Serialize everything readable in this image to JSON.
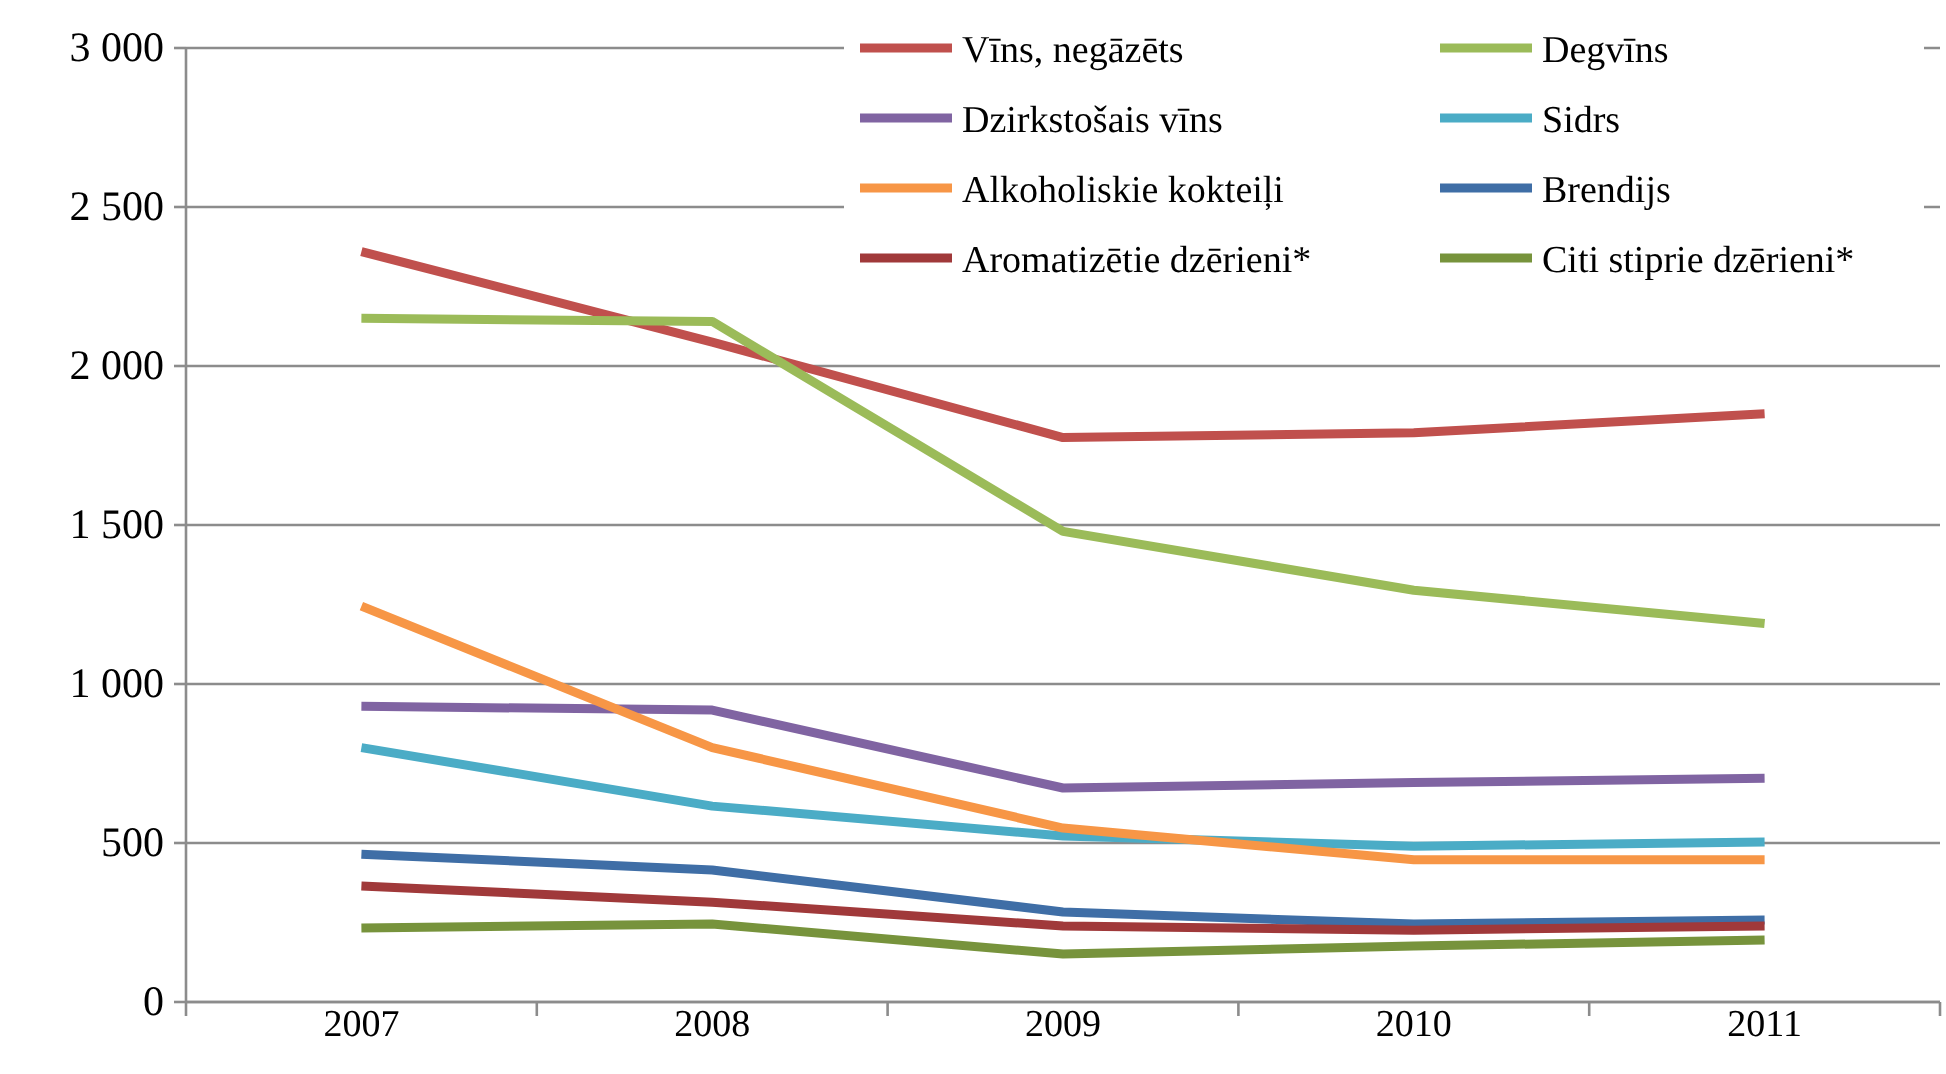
{
  "chart_data": {
    "type": "line",
    "categories": [
      "2007",
      "2008",
      "2009",
      "2010",
      "2011"
    ],
    "ylim": [
      0,
      3000
    ],
    "yticks": [
      {
        "value": 0,
        "label": "0"
      },
      {
        "value": 500,
        "label": "500"
      },
      {
        "value": 1000,
        "label": "1 000"
      },
      {
        "value": 1500,
        "label": "1 500"
      },
      {
        "value": 2000,
        "label": "2 000"
      },
      {
        "value": 2500,
        "label": "2 500"
      },
      {
        "value": 3000,
        "label": "3 000"
      }
    ],
    "grid": "y",
    "legend": "top right",
    "marker": "none",
    "line_style": "solid",
    "series": [
      {
        "name": "Vīns, negāzēts",
        "color": "#c0504d",
        "values": [
          2360,
          2075,
          1775,
          1790,
          1850
        ]
      },
      {
        "name": "Degvīns",
        "color": "#9bbb59",
        "values": [
          2150,
          2140,
          1480,
          1295,
          1190
        ]
      },
      {
        "name": "Dzirkstošais vīns",
        "color": "#8064a2",
        "values": [
          930,
          918,
          673,
          690,
          704
        ]
      },
      {
        "name": "Sidrs",
        "color": "#4bacc6",
        "values": [
          800,
          616,
          522,
          490,
          503
        ]
      },
      {
        "name": "Alkoholiskie kokteiļi",
        "color": "#f79646",
        "values": [
          1245,
          800,
          547,
          447,
          447
        ]
      },
      {
        "name": "Brendijs",
        "color": "#3f6ea6",
        "values": [
          465,
          415,
          283,
          245,
          258
        ]
      },
      {
        "name": "Aromatizētie dzērieni*",
        "color": "#a0393a",
        "values": [
          365,
          314,
          239,
          226,
          239
        ]
      },
      {
        "name": "Citi stiprie dzērieni*",
        "color": "#77933c",
        "values": [
          233,
          245,
          151,
          176,
          195
        ]
      }
    ]
  }
}
